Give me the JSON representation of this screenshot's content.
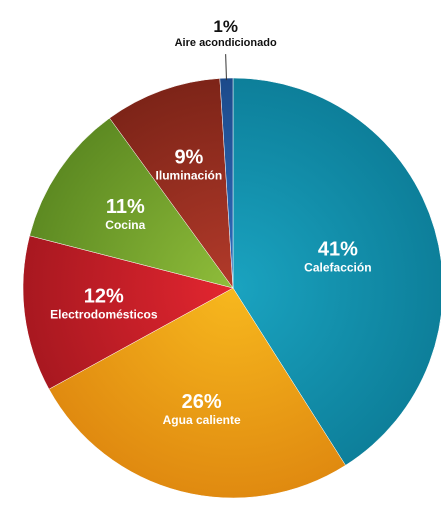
{
  "chart_data": {
    "type": "pie",
    "title": "",
    "slices": [
      {
        "label": "Calefacción",
        "value": 41,
        "value_label": "41%",
        "color": "#1aa3c0",
        "color_dark": "#0d7f9a"
      },
      {
        "label": "Agua caliente",
        "value": 26,
        "value_label": "26%",
        "color": "#f7b81e",
        "color_dark": "#e08a10"
      },
      {
        "label": "Electrodomésticos",
        "value": 12,
        "value_label": "12%",
        "color": "#e32630",
        "color_dark": "#a81820"
      },
      {
        "label": "Cocina",
        "value": 11,
        "value_label": "11%",
        "color": "#8fbd3a",
        "color_dark": "#5d8a22"
      },
      {
        "label": "Iluminación",
        "value": 9,
        "value_label": "9%",
        "color": "#b23a2a",
        "color_dark": "#7d2418"
      },
      {
        "label": "Aire acondicionado",
        "value": 1,
        "value_label": "1%",
        "color": "#2f6fbf",
        "color_dark": "#1c4a8a"
      }
    ],
    "start_angle_deg": 0,
    "direction": "clockwise",
    "label_color": "#ffffff",
    "external_label_color": "#111111"
  }
}
